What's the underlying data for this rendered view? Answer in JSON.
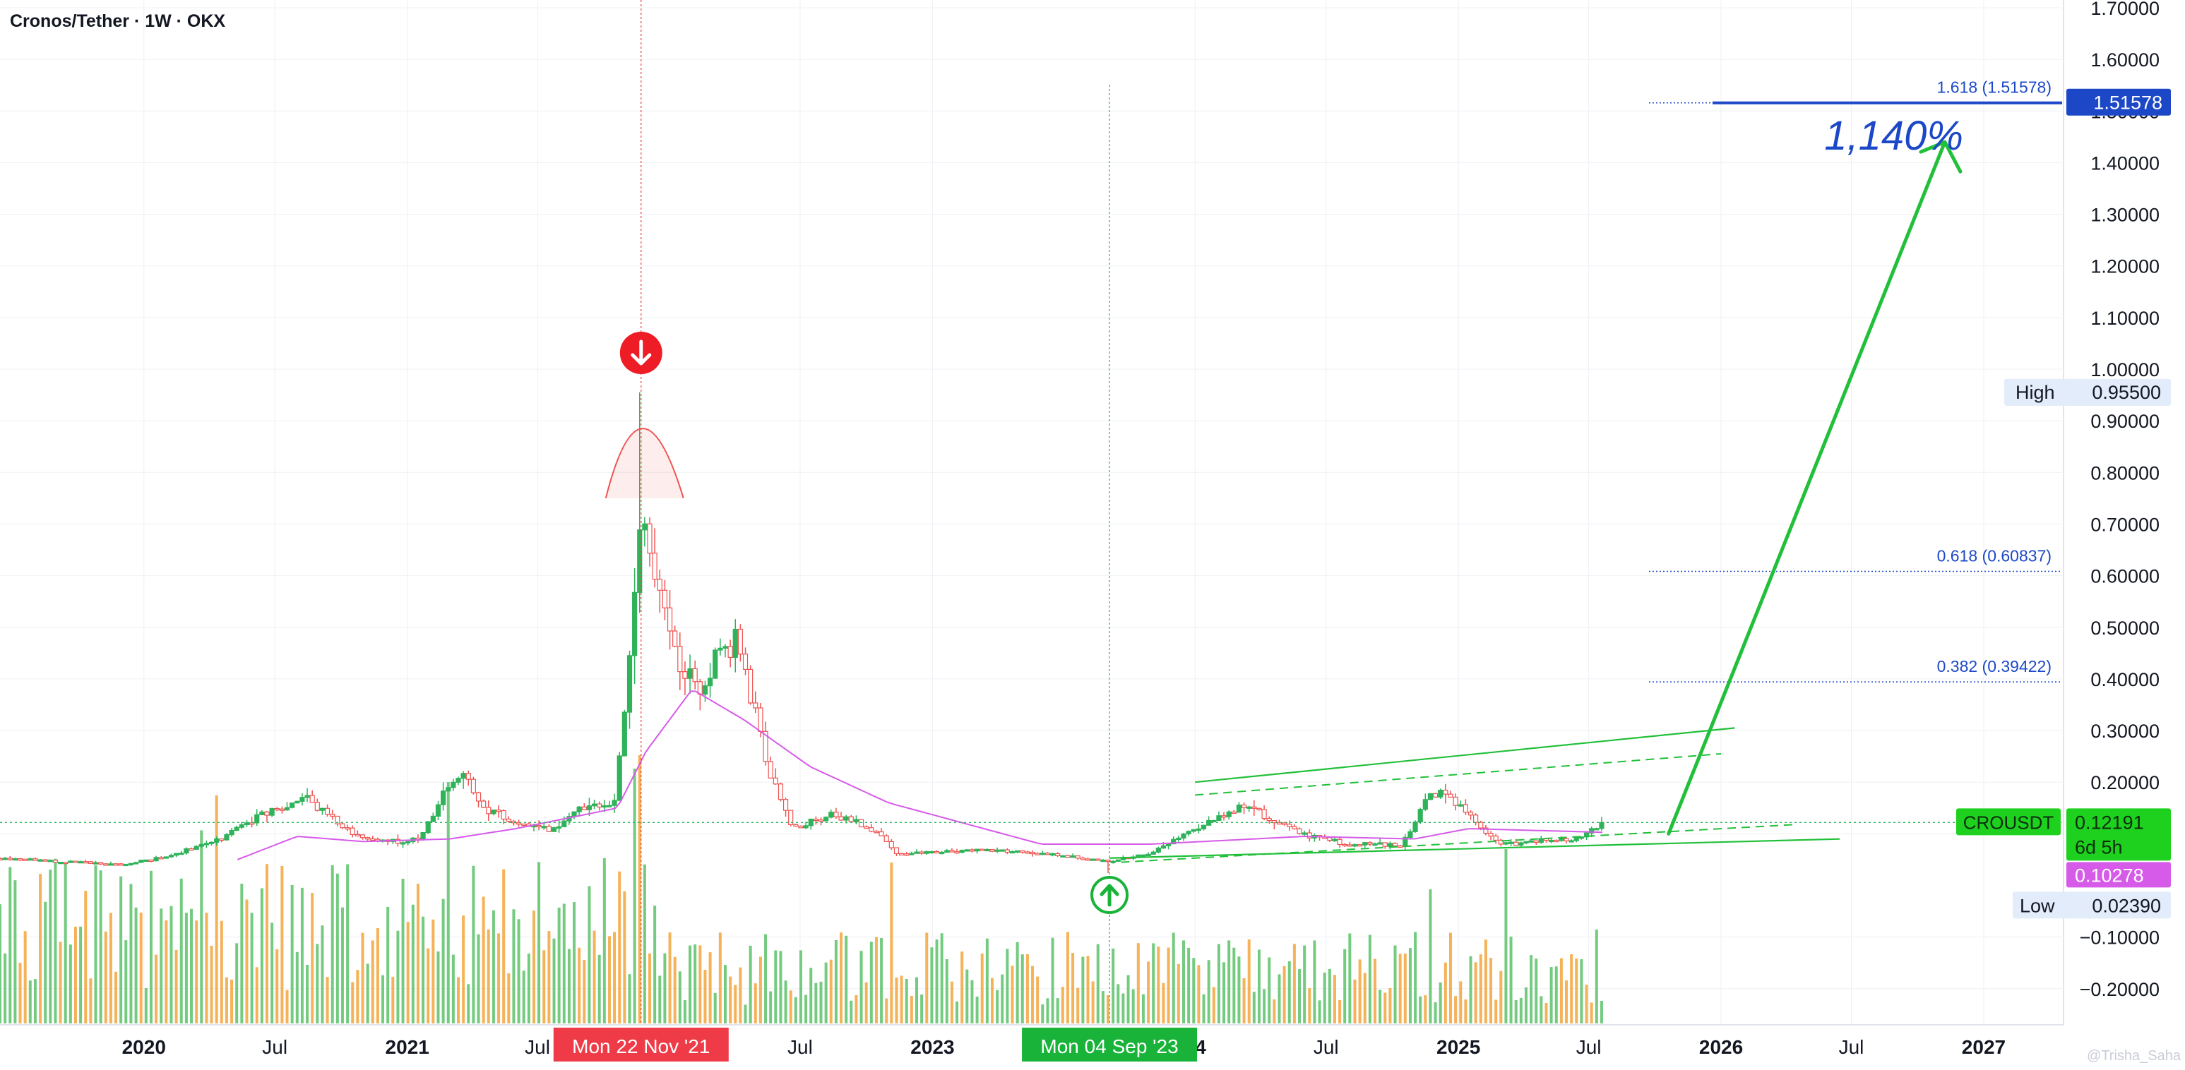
{
  "title": "Cronos/Tether · 1W · OKX",
  "watermark": "@Trisha_Saha",
  "colors": {
    "up": "#2fb35a",
    "down": "#ef5350",
    "ma": "#d65be8",
    "fib": "#1c48c8",
    "pattern": "#22c03a",
    "volume_up": "#5cc26a",
    "volume_down": "#f3a43b",
    "crosshair_top": "#ef3b3b",
    "crosshair_low": "#2bb24c",
    "grid": "#eef0f4",
    "axis_text": "#131722"
  },
  "chart_data": {
    "type": "candlestick",
    "interval": "1W",
    "exchange": "OKX",
    "pair": "CROUSDT",
    "x_axis": {
      "ticks": [
        {
          "label": "2020",
          "date": "2020-01-01",
          "bold": true
        },
        {
          "label": "Jul",
          "date": "2020-07-01",
          "bold": false
        },
        {
          "label": "2021",
          "date": "2021-01-01",
          "bold": true
        },
        {
          "label": "Jul",
          "date": "2021-07-01",
          "bold": false
        },
        {
          "label": "Jul",
          "date": "2022-07-01",
          "bold": false
        },
        {
          "label": "2023",
          "date": "2023-01-01",
          "bold": true
        },
        {
          "label": "24",
          "date": "2024-01-01",
          "bold": true
        },
        {
          "label": "Jul",
          "date": "2024-07-01",
          "bold": false
        },
        {
          "label": "2025",
          "date": "2025-01-01",
          "bold": true
        },
        {
          "label": "Jul",
          "date": "2025-07-01",
          "bold": false
        },
        {
          "label": "2026",
          "date": "2026-01-01",
          "bold": true
        },
        {
          "label": "Jul",
          "date": "2026-07-01",
          "bold": false
        },
        {
          "label": "2027",
          "date": "2027-01-01",
          "bold": true
        }
      ],
      "range": [
        "2019-06-15",
        "2027-04-20"
      ]
    },
    "y_axis": {
      "ticks": [
        "1.70000",
        "1.60000",
        "1.50000",
        "1.40000",
        "1.30000",
        "1.20000",
        "1.10000",
        "1.00000",
        "0.90000",
        "0.80000",
        "0.70000",
        "0.60000",
        "0.50000",
        "0.40000",
        "0.30000",
        "0.20000",
        "0.10000",
        "−0.10000",
        "−0.20000"
      ],
      "tick_values": [
        1.7,
        1.6,
        1.5,
        1.4,
        1.3,
        1.2,
        1.1,
        1.0,
        0.9,
        0.8,
        0.7,
        0.6,
        0.5,
        0.4,
        0.3,
        0.2,
        0.1,
        -0.1,
        -0.2
      ],
      "range": [
        -0.27,
        1.715
      ]
    },
    "price_anchors": [
      [
        "2019-06-15",
        0.052
      ],
      [
        "2019-09-01",
        0.047
      ],
      [
        "2019-12-01",
        0.04
      ],
      [
        "2020-02-15",
        0.06
      ],
      [
        "2020-04-15",
        0.09
      ],
      [
        "2020-06-15",
        0.14
      ],
      [
        "2020-08-15",
        0.17
      ],
      [
        "2020-09-25",
        0.12
      ],
      [
        "2020-11-15",
        0.085
      ],
      [
        "2021-01-20",
        0.09
      ],
      [
        "2021-02-20",
        0.18
      ],
      [
        "2021-03-20",
        0.21
      ],
      [
        "2021-04-20",
        0.15
      ],
      [
        "2021-06-01",
        0.12
      ],
      [
        "2021-07-20",
        0.11
      ],
      [
        "2021-09-01",
        0.15
      ],
      [
        "2021-10-15",
        0.16
      ],
      [
        "2021-11-01",
        0.35
      ],
      [
        "2021-11-22",
        0.7
      ],
      [
        "2021-12-06",
        0.64
      ],
      [
        "2021-12-27",
        0.54
      ],
      [
        "2022-01-17",
        0.42
      ],
      [
        "2022-02-14",
        0.38
      ],
      [
        "2022-03-07",
        0.45
      ],
      [
        "2022-04-04",
        0.47
      ],
      [
        "2022-04-25",
        0.36
      ],
      [
        "2022-05-23",
        0.2
      ],
      [
        "2022-06-20",
        0.11
      ],
      [
        "2022-08-15",
        0.14
      ],
      [
        "2022-10-15",
        0.105
      ],
      [
        "2022-11-14",
        0.06
      ],
      [
        "2023-03-01",
        0.07
      ],
      [
        "2023-06-15",
        0.06
      ],
      [
        "2023-09-04",
        0.048
      ],
      [
        "2023-10-25",
        0.06
      ],
      [
        "2023-12-15",
        0.095
      ],
      [
        "2024-03-11",
        0.16
      ],
      [
        "2024-04-15",
        0.125
      ],
      [
        "2024-06-01",
        0.1
      ],
      [
        "2024-08-01",
        0.08
      ],
      [
        "2024-10-15",
        0.078
      ],
      [
        "2024-11-15",
        0.165
      ],
      [
        "2024-12-09",
        0.19
      ],
      [
        "2025-01-15",
        0.14
      ],
      [
        "2025-02-25",
        0.08
      ],
      [
        "2025-04-10",
        0.085
      ],
      [
        "2025-06-20",
        0.09
      ],
      [
        "2025-07-20",
        0.122
      ]
    ],
    "ma_anchors": [
      [
        "2020-05-10",
        0.05
      ],
      [
        "2020-08-01",
        0.095
      ],
      [
        "2020-11-01",
        0.085
      ],
      [
        "2021-03-01",
        0.09
      ],
      [
        "2021-06-01",
        0.11
      ],
      [
        "2021-10-20",
        0.15
      ],
      [
        "2021-11-29",
        0.26
      ],
      [
        "2022-02-01",
        0.38
      ],
      [
        "2022-04-15",
        0.32
      ],
      [
        "2022-07-15",
        0.23
      ],
      [
        "2022-11-01",
        0.16
      ],
      [
        "2023-06-01",
        0.08
      ],
      [
        "2023-11-01",
        0.08
      ],
      [
        "2024-06-01",
        0.095
      ],
      [
        "2024-11-01",
        0.09
      ],
      [
        "2025-01-15",
        0.11
      ],
      [
        "2025-07-20",
        0.103
      ]
    ],
    "series": [
      {
        "name": "CROUSDT",
        "last_value": 0.12191
      }
    ],
    "stats": {
      "high": 0.955,
      "low": 0.0239,
      "last": 0.12191,
      "ma_last": 0.10278
    },
    "fib_levels": [
      {
        "level": "1.618",
        "value": 1.51578,
        "label": "1.618 (1.51578)"
      },
      {
        "level": "0.618",
        "value": 0.60837,
        "label": "0.618 (0.60837)"
      },
      {
        "level": "0.382",
        "value": 0.39422,
        "label": "0.382 (0.39422)"
      }
    ],
    "triangle": {
      "upper": [
        [
          "2024-01-01",
          0.2
        ],
        [
          "2026-01-20",
          0.305
        ]
      ],
      "upper_dashed": [
        [
          "2024-01-01",
          0.175
        ],
        [
          "2026-01-01",
          0.255
        ]
      ],
      "lower": [
        [
          "2023-09-04",
          0.053
        ],
        [
          "2026-06-15",
          0.09
        ]
      ],
      "lower_dashed": [
        [
          "2023-09-20",
          0.045
        ],
        [
          "2026-04-15",
          0.118
        ]
      ]
    },
    "projection": {
      "from": [
        "2025-10-20",
        0.1
      ],
      "to": [
        "2026-11-08",
        1.44
      ]
    },
    "markers": {
      "top": {
        "date": "2021-11-22",
        "value": 0.955,
        "axis_label": "Mon 22 Nov '21"
      },
      "bottom": {
        "date": "2023-09-04",
        "value": 0.0239,
        "axis_label": "Mon 04 Sep '23"
      }
    },
    "volume_spikes": [
      [
        "2020-03-20",
        0.72
      ],
      [
        "2020-04-12",
        0.85
      ],
      [
        "2021-03-01",
        0.9
      ],
      [
        "2021-11-10",
        0.95
      ],
      [
        "2021-11-22",
        1.0
      ],
      [
        "2022-11-07",
        0.6
      ],
      [
        "2024-11-20",
        0.5
      ],
      [
        "2025-03-10",
        0.65
      ],
      [
        "2025-07-10",
        0.35
      ]
    ]
  },
  "labels": {
    "fib_1618_tag": "1.51578",
    "percent_gain": "1,140%",
    "high_label": "High",
    "high_value": "0.95500",
    "low_label": "Low",
    "low_value": "0.02390",
    "symbol_tag": "CROUSDT",
    "price_tag": "0.12191",
    "countdown": "6d 5h",
    "ma_tag": "0.10278"
  }
}
